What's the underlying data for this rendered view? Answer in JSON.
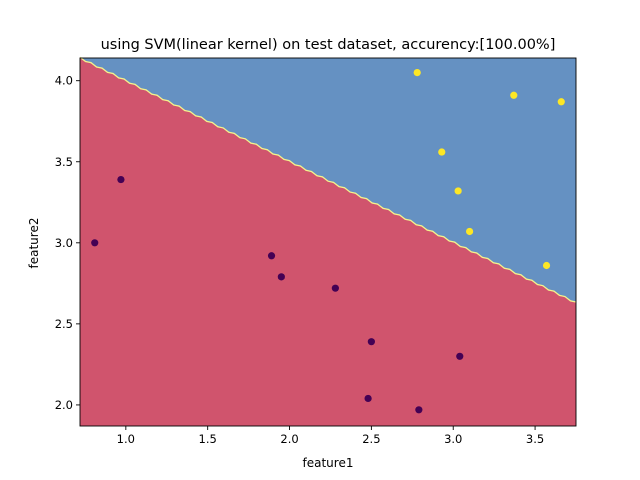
{
  "chart_data": {
    "type": "scatter",
    "title": "using SVM(linear kernel) on test dataset, accurency:[100.00%]",
    "xlabel": "feature1",
    "ylabel": "feature2",
    "xlim": [
      0.72,
      3.75
    ],
    "ylim": [
      1.87,
      4.14
    ],
    "xticks": [
      1.0,
      1.5,
      2.0,
      2.5,
      3.0,
      3.5
    ],
    "xtick_labels": [
      "1.0",
      "1.5",
      "2.0",
      "2.5",
      "3.0",
      "3.5"
    ],
    "yticks": [
      2.0,
      2.5,
      3.0,
      3.5,
      4.0
    ],
    "ytick_labels": [
      "2.0",
      "2.5",
      "3.0",
      "3.5",
      "4.0"
    ],
    "grid": false,
    "legend": "none",
    "decision_boundary": {
      "from": [
        0.72,
        4.14
      ],
      "to": [
        3.75,
        2.63
      ],
      "line_color": "#f3f38c",
      "region_below_color": "#d0546d",
      "region_above_color": "#6591c2"
    },
    "series": [
      {
        "color": "#440154",
        "points": [
          [
            0.81,
            3.0
          ],
          [
            0.97,
            3.39
          ],
          [
            1.89,
            2.92
          ],
          [
            1.95,
            2.79
          ],
          [
            2.28,
            2.72
          ],
          [
            2.5,
            2.39
          ],
          [
            2.48,
            2.04
          ],
          [
            2.79,
            1.97
          ],
          [
            3.04,
            2.3
          ]
        ]
      },
      {
        "color": "#fde725",
        "points": [
          [
            2.78,
            4.05
          ],
          [
            3.37,
            3.91
          ],
          [
            3.66,
            3.87
          ],
          [
            2.93,
            3.56
          ],
          [
            3.03,
            3.32
          ],
          [
            3.1,
            3.07
          ],
          [
            3.57,
            2.86
          ]
        ]
      }
    ]
  }
}
